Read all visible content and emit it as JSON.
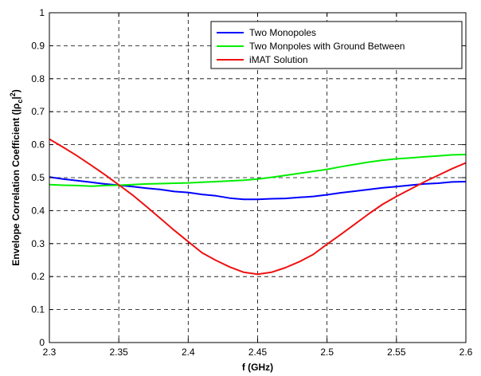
{
  "chart_data": {
    "type": "line",
    "xlabel": "f (GHz)",
    "ylabel_main": "Envelope Correlation Coefficient (|",
    "ylabel_rho": "ρ",
    "ylabel_sub": "c",
    "ylabel_bar": "|",
    "ylabel_sup": "2",
    "ylabel_close": ")",
    "xlim": [
      2.3,
      2.6
    ],
    "ylim": [
      0,
      1
    ],
    "xticks": [
      "2.3",
      "2.35",
      "2.4",
      "2.45",
      "2.5",
      "2.55",
      "2.6"
    ],
    "xtick_values": [
      2.3,
      2.35,
      2.4,
      2.45,
      2.5,
      2.55,
      2.6
    ],
    "yticks": [
      "0",
      "0.1",
      "0.2",
      "0.3",
      "0.4",
      "0.5",
      "0.6",
      "0.7",
      "0.8",
      "0.9",
      "1"
    ],
    "ytick_values": [
      0,
      0.1,
      0.2,
      0.3,
      0.4,
      0.5,
      0.6,
      0.7,
      0.8,
      0.9,
      1
    ],
    "grid": true,
    "legend_position": "top-right",
    "series": [
      {
        "name": "Two Monopoles",
        "color": "#0000ff",
        "x": [
          2.3,
          2.31,
          2.32,
          2.33,
          2.34,
          2.35,
          2.36,
          2.37,
          2.38,
          2.39,
          2.4,
          2.41,
          2.42,
          2.43,
          2.44,
          2.45,
          2.46,
          2.47,
          2.48,
          2.49,
          2.5,
          2.51,
          2.52,
          2.53,
          2.54,
          2.55,
          2.56,
          2.57,
          2.58,
          2.59,
          2.6
        ],
        "y": [
          0.502,
          0.496,
          0.491,
          0.486,
          0.481,
          0.477,
          0.473,
          0.468,
          0.464,
          0.458,
          0.455,
          0.449,
          0.445,
          0.438,
          0.434,
          0.434,
          0.436,
          0.437,
          0.44,
          0.443,
          0.448,
          0.454,
          0.459,
          0.464,
          0.469,
          0.473,
          0.477,
          0.481,
          0.483,
          0.487,
          0.488
        ]
      },
      {
        "name": "Two Monpoles with Ground Between",
        "color": "#00ee00",
        "x": [
          2.3,
          2.31,
          2.32,
          2.33,
          2.34,
          2.35,
          2.36,
          2.37,
          2.38,
          2.39,
          2.4,
          2.41,
          2.42,
          2.43,
          2.44,
          2.45,
          2.46,
          2.47,
          2.48,
          2.49,
          2.5,
          2.51,
          2.52,
          2.53,
          2.54,
          2.55,
          2.56,
          2.57,
          2.58,
          2.59,
          2.6
        ],
        "y": [
          0.479,
          0.477,
          0.476,
          0.474,
          0.476,
          0.477,
          0.479,
          0.481,
          0.482,
          0.483,
          0.484,
          0.486,
          0.488,
          0.49,
          0.492,
          0.496,
          0.501,
          0.507,
          0.513,
          0.519,
          0.525,
          0.533,
          0.54,
          0.547,
          0.553,
          0.557,
          0.56,
          0.563,
          0.566,
          0.569,
          0.57
        ]
      },
      {
        "name": "iMAT Solution",
        "color": "#ee1111",
        "x": [
          2.3,
          2.31,
          2.32,
          2.33,
          2.34,
          2.35,
          2.36,
          2.37,
          2.38,
          2.39,
          2.4,
          2.41,
          2.42,
          2.43,
          2.44,
          2.45,
          2.46,
          2.47,
          2.48,
          2.49,
          2.5,
          2.51,
          2.52,
          2.53,
          2.54,
          2.55,
          2.56,
          2.57,
          2.58,
          2.59,
          2.6
        ],
        "y": [
          0.617,
          0.592,
          0.566,
          0.538,
          0.509,
          0.478,
          0.447,
          0.412,
          0.376,
          0.34,
          0.306,
          0.272,
          0.249,
          0.229,
          0.213,
          0.207,
          0.213,
          0.227,
          0.245,
          0.267,
          0.298,
          0.328,
          0.359,
          0.39,
          0.419,
          0.443,
          0.465,
          0.487,
          0.507,
          0.527,
          0.545
        ]
      }
    ]
  }
}
